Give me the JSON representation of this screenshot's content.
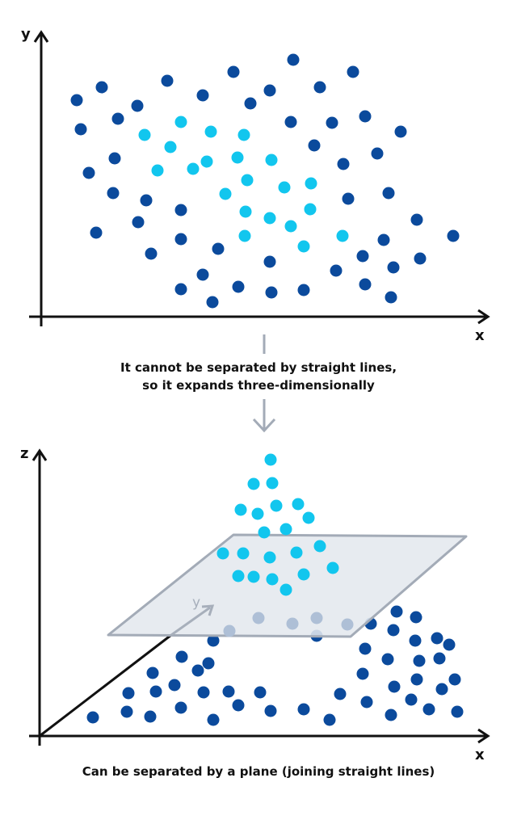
{
  "colors": {
    "outer_class": "#0b4a9c",
    "inner_class": "#12c6ee",
    "below_plane_faded": "#aebfd6",
    "plane_fill": "#e4e8ee",
    "plane_edge": "#a3abb7",
    "arrow": "#a3abb7",
    "axis": "#111111"
  },
  "top_plot": {
    "x_label": "x",
    "y_label": "y"
  },
  "transition": {
    "line1": "It cannot be separated by straight lines,",
    "line2": "so it expands three-dimensionally"
  },
  "bottom_plot": {
    "x_label": "x",
    "y_label": "y",
    "z_label": "z"
  },
  "caption": "Can be separated by a plane (joining straight lines)"
}
